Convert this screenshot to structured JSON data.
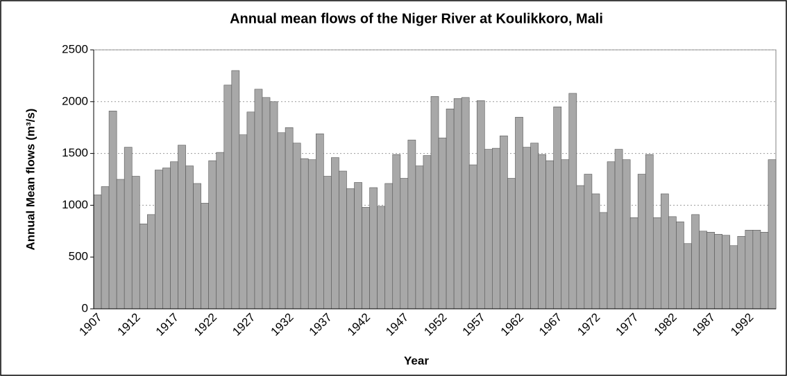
{
  "chart_data": {
    "type": "bar",
    "title": "Annual mean flows of the Niger River at Koulikkoro, Mali",
    "xlabel": "Year",
    "ylabel": "Annual Mean flows (m³/s)",
    "categories": [
      "1907",
      null,
      null,
      null,
      null,
      "1912",
      null,
      null,
      null,
      null,
      "1917",
      null,
      null,
      null,
      null,
      "1922",
      null,
      null,
      null,
      null,
      "1927",
      null,
      null,
      null,
      null,
      "1932",
      null,
      null,
      null,
      null,
      "1937",
      null,
      null,
      null,
      null,
      "1942",
      null,
      null,
      null,
      null,
      "1947",
      null,
      null,
      null,
      null,
      "1952",
      null,
      null,
      null,
      null,
      "1957",
      null,
      null,
      null,
      null,
      "1962",
      null,
      null,
      null,
      null,
      "1967",
      null,
      null,
      null,
      null,
      "1972",
      null,
      null,
      null,
      null,
      "1977",
      null,
      null,
      null,
      null,
      "1982",
      null,
      null,
      null,
      null,
      "1987",
      null,
      null,
      null,
      null,
      "1992",
      null,
      null,
      null
    ],
    "values": [
      1100,
      1180,
      1910,
      1250,
      1560,
      1280,
      820,
      910,
      1340,
      1360,
      1420,
      1580,
      1380,
      1210,
      1020,
      1430,
      1510,
      2160,
      2300,
      1680,
      1900,
      2120,
      2040,
      2000,
      1700,
      1750,
      1600,
      1450,
      1440,
      1690,
      1280,
      1460,
      1330,
      1160,
      1220,
      980,
      1170,
      990,
      1210,
      1490,
      1260,
      1630,
      1380,
      1480,
      2050,
      1650,
      1930,
      2030,
      2040,
      1390,
      2010,
      1540,
      1550,
      1670,
      1260,
      1850,
      1560,
      1600,
      1490,
      1430,
      1950,
      1440,
      2080,
      1190,
      1300,
      1110,
      930,
      1420,
      1540,
      1440,
      880,
      1300,
      1490,
      880,
      1110,
      890,
      840,
      630,
      910,
      750,
      740,
      720,
      710,
      610,
      700,
      760,
      760,
      740,
      1440
    ],
    "color": "#a8a8a8",
    "ylim": [
      0,
      2500
    ],
    "yticks": [
      0,
      500,
      1000,
      1500,
      2000,
      2500
    ],
    "grid": true
  }
}
